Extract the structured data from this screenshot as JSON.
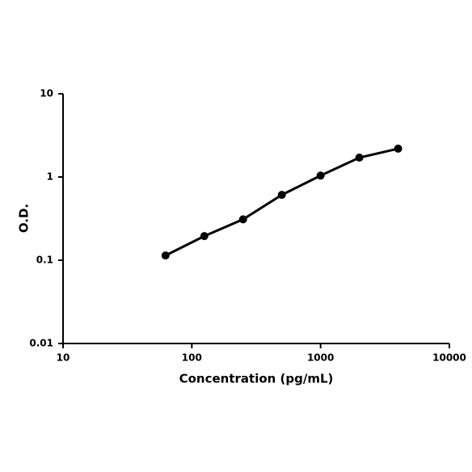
{
  "chart_data": {
    "type": "line",
    "xlabel": "Concentration (pg/mL)",
    "ylabel": "O.D.",
    "x": [
      62.5,
      125,
      250,
      500,
      1000,
      2000,
      4000
    ],
    "series": [
      {
        "name": null,
        "color": "#000000",
        "values": [
          0.114,
          0.195,
          0.31,
          0.61,
          1.04,
          1.71,
          2.19
        ]
      }
    ],
    "xscale": "log",
    "yscale": "log",
    "xlim": [
      10,
      10000
    ],
    "xticks": [
      10,
      100,
      1000,
      10000
    ],
    "ylim": [
      0.01,
      10
    ],
    "yticks": [
      0.01,
      0.1,
      1,
      10
    ],
    "grid": false
  }
}
